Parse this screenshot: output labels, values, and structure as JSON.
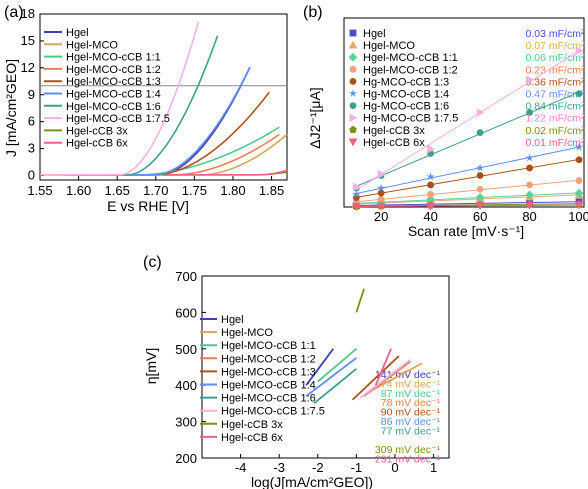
{
  "chart_data": [
    {
      "panel": "(a)",
      "type": "line",
      "xlabel": "E vs  RHE [V]",
      "ylabel": "J [mA/cm²GEO]",
      "xlim": [
        1.55,
        1.87
      ],
      "ylim": [
        -0.5,
        18
      ],
      "xticks": [
        "1.55",
        "1.60",
        "1.65",
        "1.70",
        "1.75",
        "1.80",
        "1.85"
      ],
      "yticks": [
        "0",
        "3",
        "6",
        "9",
        "12",
        "15",
        "18"
      ],
      "hline": 10,
      "series": [
        {
          "name": "Hgel",
          "color": "#3f3fb0",
          "onset": 1.705,
          "end": 1.822,
          "endJ": 12.0
        },
        {
          "name": "Hgel-MCO",
          "color": "#d9a45a",
          "onset": 1.76,
          "end": 1.87,
          "endJ": 4.5
        },
        {
          "name": "Hgel-MCO-cCB 1:1",
          "color": "#4fc98a",
          "onset": 1.68,
          "end": 1.86,
          "endJ": 5.3
        },
        {
          "name": "Hgel-MCO-cCB 1:2",
          "color": "#f07e52",
          "onset": 1.725,
          "end": 1.86,
          "endJ": 4.5
        },
        {
          "name": "Hgel-MCO-cCB 1:3",
          "color": "#b0501e",
          "onset": 1.7,
          "end": 1.847,
          "endJ": 9.2
        },
        {
          "name": "Hgel-MCO-cCB 1:4",
          "color": "#5f8fef",
          "onset": 1.7,
          "end": 1.822,
          "endJ": 12.0
        },
        {
          "name": "Hgel-MCO-cCB 1:6",
          "color": "#3f9f8f",
          "onset": 1.665,
          "end": 1.78,
          "endJ": 15.5
        },
        {
          "name": "Hgel-MCO-cCB 1:7.5",
          "color": "#f7b0e6",
          "onset": 1.655,
          "end": 1.755,
          "endJ": 17.0
        },
        {
          "name": "Hgel-cCB 3x",
          "color": "#7f8f0f",
          "onset": 1.83,
          "end": 1.87,
          "endJ": 0.3
        },
        {
          "name": "Hgel-cCB 6x",
          "color": "#ef5f8f",
          "onset": 1.835,
          "end": 1.87,
          "endJ": 0.5
        }
      ]
    },
    {
      "panel": "(b)",
      "type": "scatter",
      "xlabel": "Scan rate [mV·s⁻¹]",
      "ylabel": "ΔJ2⁻¹[μA]",
      "xlim": [
        5,
        102
      ],
      "ylim": [
        0,
        30
      ],
      "xticks": [
        "20",
        "40",
        "60",
        "80",
        "100"
      ],
      "x": [
        10,
        20,
        40,
        60,
        80,
        100
      ],
      "series": [
        {
          "name": "Hgel",
          "marker": "square",
          "color": "#4b4bd6",
          "cap": "0.03 mF/cm²",
          "capColor": "#4b4bd6",
          "values": [
            0.2,
            0.3,
            0.5,
            0.6,
            0.7,
            0.8
          ]
        },
        {
          "name": "Hgel-MCO",
          "marker": "triangle",
          "color": "#e8a868",
          "cap": "0.07 mF/cm²",
          "capColor": "#d9b24a",
          "values": [
            0.4,
            0.7,
            1.0,
            1.3,
            1.6,
            1.9
          ]
        },
        {
          "name": "Hgel-MCO-cCB 1:1",
          "marker": "diamond",
          "color": "#59d39b",
          "cap": "0.06 mF/cm²",
          "capColor": "#4fc98a",
          "values": [
            0.5,
            0.8,
            1.2,
            1.5,
            1.9,
            2.2
          ]
        },
        {
          "name": "Hgel-MCO-cCB 1:2",
          "marker": "circle",
          "color": "#f4a07a",
          "cap": "0.23 mF/cm²",
          "capColor": "#f07e52",
          "values": [
            0.8,
            1.2,
            2.0,
            2.8,
            3.5,
            4.2
          ]
        },
        {
          "name": "Hg-MCO-cCB 1:3",
          "marker": "circle",
          "color": "#a84e18",
          "cap": "0.36 mF/cm²",
          "capColor": "#b0501e",
          "values": [
            1.5,
            2.2,
            3.5,
            5.0,
            6.2,
            7.5
          ]
        },
        {
          "name": "Hg-MCO-cCB 1:4",
          "marker": "star",
          "color": "#5f8fef",
          "cap": "0.47 mF/cm²",
          "capColor": "#5f8fef",
          "values": [
            2.0,
            3.0,
            4.8,
            6.2,
            7.8,
            9.5
          ]
        },
        {
          "name": "Hg-MCO-cCB 1:6",
          "marker": "circle",
          "color": "#3f9f8f",
          "cap": "0.84 mF/cm²",
          "capColor": "#3f9f8f",
          "values": [
            3.0,
            5.0,
            8.5,
            11.8,
            15.0,
            18.0
          ]
        },
        {
          "name": "Hg-MCO-cCB 1:7.5",
          "marker": "triangle-right",
          "color": "#f7b0e6",
          "cap": "1.22 mF/cm²",
          "capColor": "#f080d0",
          "values": [
            3.2,
            5.2,
            9.2,
            15.0,
            20.2,
            24.8
          ]
        },
        {
          "name": "Hgel-cCB 3x",
          "marker": "pentagon",
          "color": "#7f8f0f",
          "cap": "0.02 mF/cm²",
          "capColor": "#7f8f0f",
          "values": [
            0.1,
            0.15,
            0.25,
            0.35,
            0.45,
            0.5
          ]
        },
        {
          "name": "Hgel-cCB 6x",
          "marker": "triangle-down",
          "color": "#ef5f7f",
          "cap": "0.01 mF/cm²",
          "capColor": "#ef5f8f",
          "values": [
            0.05,
            0.1,
            0.15,
            0.2,
            0.25,
            0.3
          ]
        }
      ]
    },
    {
      "panel": "(c)",
      "type": "line",
      "xlabel": "log(J[mA/cm²GEO])",
      "ylabel": "η[mV]",
      "xlim": [
        -5,
        1.4
      ],
      "ylim": [
        200,
        700
      ],
      "xticks": [
        "-4",
        "-3",
        "-2",
        "-1",
        "0",
        "1"
      ],
      "yticks": [
        "200",
        "300",
        "400",
        "500",
        "600",
        "700"
      ],
      "series": [
        {
          "name": "Hgel",
          "color": "#3f3fb0",
          "slope": "141 mV dec⁻¹",
          "x": [
            -2.3,
            -1.6
          ],
          "y": [
            400,
            500
          ]
        },
        {
          "name": "Hgel-MCO",
          "color": "#d9a45a",
          "slope": "74 mV dec⁻¹",
          "x": [
            -0.7,
            0.7
          ],
          "y": [
            380,
            460
          ]
        },
        {
          "name": "Hgel-MCO-cCB 1:1",
          "color": "#4fc98a",
          "slope": "87 mV dec⁻¹",
          "x": [
            -2.0,
            -1.0
          ],
          "y": [
            410,
            500
          ]
        },
        {
          "name": "Hgel-MCO-cCB 1:2",
          "color": "#f07e52",
          "slope": "78 mV dec⁻¹",
          "x": [
            -0.8,
            0.4
          ],
          "y": [
            370,
            465
          ]
        },
        {
          "name": "Hgel-MCO-cCB 1:3",
          "color": "#b0501e",
          "slope": "90 mV dec⁻¹",
          "x": [
            -1.1,
            0.1
          ],
          "y": [
            360,
            480
          ]
        },
        {
          "name": "Hgel-MCO-cCB 1:4",
          "color": "#5f8fef",
          "slope": "86 mV dec⁻¹",
          "x": [
            -2.3,
            -1.0
          ],
          "y": [
            370,
            475
          ]
        },
        {
          "name": "Hgel-MCO-cCB 1:6",
          "color": "#3f9f8f",
          "slope": "77 mV dec⁻¹",
          "x": [
            -2.1,
            -1.0
          ],
          "y": [
            350,
            445
          ]
        },
        {
          "name": "Hgel-MCO-cCB 1:7.5",
          "color": "#f7b0e6",
          "slope": "",
          "x": [
            -0.9,
            0.4
          ],
          "y": [
            365,
            470
          ]
        },
        {
          "name": "Hgel-cCB 3x",
          "color": "#7f8f0f",
          "slope": "309 mV dec⁻¹",
          "x": [
            -1.0,
            -0.8
          ],
          "y": [
            600,
            665
          ]
        },
        {
          "name": "Hgel-cCB 6x",
          "color": "#ef5f8f",
          "slope": "231 mV dec⁻¹",
          "x": [
            -0.5,
            -0.1
          ],
          "y": [
            400,
            500
          ]
        }
      ]
    }
  ]
}
